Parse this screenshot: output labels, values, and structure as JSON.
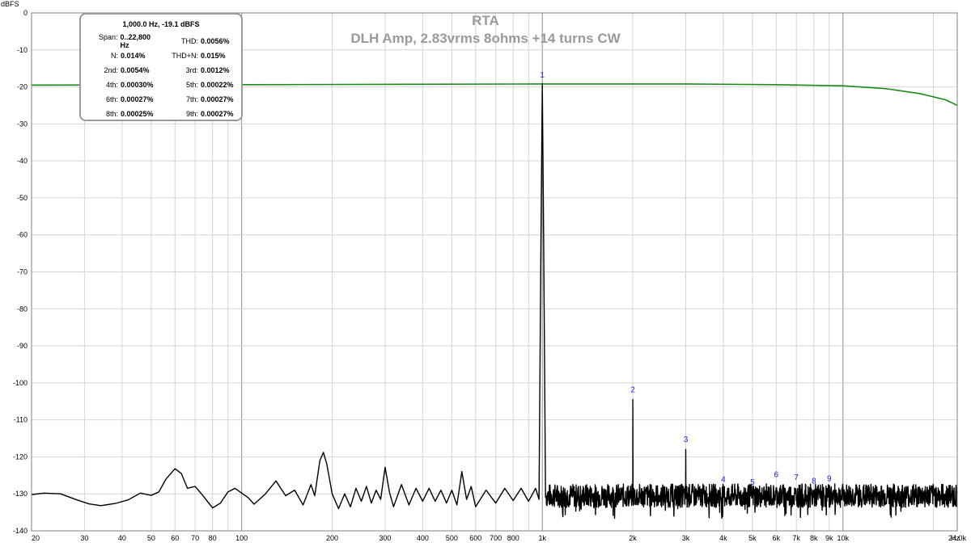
{
  "chart_data": {
    "type": "line",
    "title": "RTA",
    "subtitle": "DLH Amp, 2.83vrms 8ohms +14 turns CW",
    "ylabel": "dBFS",
    "xunit": "Hz",
    "xscale": "log",
    "xlim": [
      20,
      24000
    ],
    "ylim": [
      -140,
      0
    ],
    "grid": true,
    "y_ticks": [
      0,
      -10,
      -20,
      -30,
      -40,
      -50,
      -60,
      -70,
      -80,
      -90,
      -100,
      -110,
      -120,
      -130,
      -140
    ],
    "x_ticks": [
      {
        "v": 20,
        "label": "20"
      },
      {
        "v": 30,
        "label": "30"
      },
      {
        "v": 40,
        "label": "40"
      },
      {
        "v": 50,
        "label": "50"
      },
      {
        "v": 60,
        "label": "60"
      },
      {
        "v": 70,
        "label": "70"
      },
      {
        "v": 80,
        "label": "80"
      },
      {
        "v": 100,
        "label": "100"
      },
      {
        "v": 200,
        "label": "200"
      },
      {
        "v": 300,
        "label": "300"
      },
      {
        "v": 400,
        "label": "400"
      },
      {
        "v": 500,
        "label": "500"
      },
      {
        "v": 600,
        "label": "600"
      },
      {
        "v": 700,
        "label": "700"
      },
      {
        "v": 800,
        "label": "800"
      },
      {
        "v": 1000,
        "label": "1k"
      },
      {
        "v": 2000,
        "label": "2k"
      },
      {
        "v": 3000,
        "label": "3k"
      },
      {
        "v": 4000,
        "label": "4k"
      },
      {
        "v": 5000,
        "label": "5k"
      },
      {
        "v": 6000,
        "label": "6k"
      },
      {
        "v": 7000,
        "label": "7k"
      },
      {
        "v": 8000,
        "label": "8k"
      },
      {
        "v": 9000,
        "label": "9k"
      },
      {
        "v": 10000,
        "label": "10k"
      },
      {
        "v": 24000,
        "label": "24.0k"
      }
    ],
    "series": [
      {
        "color": "#1a8a1a",
        "points": [
          [
            20,
            -19.5
          ],
          [
            100,
            -19.4
          ],
          [
            1000,
            -19.2
          ],
          [
            3000,
            -19.2
          ],
          [
            6000,
            -19.4
          ],
          [
            10000,
            -19.7
          ],
          [
            14000,
            -20.5
          ],
          [
            18000,
            -21.8
          ],
          [
            22000,
            -23.5
          ],
          [
            24000,
            -25
          ]
        ]
      },
      {
        "color": "#000000",
        "points": [
          [
            20,
            -130.2
          ],
          [
            22,
            -129.8
          ],
          [
            25,
            -130.0
          ],
          [
            28,
            -131.5
          ],
          [
            31,
            -132.7
          ],
          [
            34,
            -133.2
          ],
          [
            38,
            -132.6
          ],
          [
            42,
            -131.6
          ],
          [
            46,
            -129.8
          ],
          [
            50,
            -130.4
          ],
          [
            53,
            -129.5
          ],
          [
            56,
            -126.0
          ],
          [
            60,
            -123.2
          ],
          [
            63,
            -124.5
          ],
          [
            66,
            -128.5
          ],
          [
            70,
            -128.0
          ],
          [
            74,
            -130.3
          ],
          [
            80,
            -133.8
          ],
          [
            85,
            -132.5
          ],
          [
            90,
            -129.5
          ],
          [
            95,
            -128.5
          ],
          [
            100,
            -129.8
          ],
          [
            105,
            -131.0
          ],
          [
            110,
            -132.8
          ],
          [
            120,
            -130.0
          ],
          [
            130,
            -126.5
          ],
          [
            140,
            -130.5
          ],
          [
            150,
            -129.0
          ],
          [
            160,
            -133.0
          ],
          [
            170,
            -127.5
          ],
          [
            175,
            -130.5
          ],
          [
            182,
            -121.0
          ],
          [
            187,
            -118.8
          ],
          [
            192,
            -122.0
          ],
          [
            200,
            -130.0
          ],
          [
            210,
            -134.0
          ],
          [
            220,
            -130.0
          ],
          [
            230,
            -133.5
          ],
          [
            240,
            -128.5
          ],
          [
            250,
            -132.0
          ],
          [
            260,
            -128.0
          ],
          [
            270,
            -132.5
          ],
          [
            280,
            -129.0
          ],
          [
            290,
            -131.5
          ],
          [
            300,
            -122.8
          ],
          [
            310,
            -129.5
          ],
          [
            320,
            -133.5
          ],
          [
            340,
            -127.5
          ],
          [
            360,
            -133.0
          ],
          [
            380,
            -128.5
          ],
          [
            400,
            -132.0
          ],
          [
            420,
            -128.5
          ],
          [
            440,
            -132.0
          ],
          [
            460,
            -129.0
          ],
          [
            480,
            -132.5
          ],
          [
            500,
            -129.0
          ],
          [
            520,
            -133.0
          ],
          [
            540,
            -124.0
          ],
          [
            560,
            -131.5
          ],
          [
            580,
            -128.0
          ],
          [
            600,
            -133.5
          ],
          [
            650,
            -129.0
          ],
          [
            700,
            -132.5
          ],
          [
            750,
            -128.5
          ],
          [
            800,
            -131.8
          ],
          [
            850,
            -128.5
          ],
          [
            900,
            -132.0
          ],
          [
            950,
            -128.5
          ],
          [
            975,
            -131.5
          ],
          [
            990,
            -60.0
          ],
          [
            1000,
            -19.1
          ],
          [
            1010,
            -60.0
          ],
          [
            1025,
            -131.0
          ],
          [
            1100,
            -130.5
          ],
          [
            1200,
            -128.5
          ],
          [
            1300,
            -132.5
          ],
          [
            1500,
            -130.0
          ],
          [
            1700,
            -131.5
          ],
          [
            1900,
            -129.5
          ],
          [
            1985,
            -130.5
          ],
          [
            2000,
            -104.5
          ],
          [
            2015,
            -130.5
          ],
          [
            2200,
            -131.0
          ],
          [
            2500,
            -130.5
          ],
          [
            2800,
            -129.5
          ],
          [
            2985,
            -131.0
          ],
          [
            3000,
            -118.0
          ],
          [
            3015,
            -131.0
          ],
          [
            3500,
            -130.5
          ],
          [
            4000,
            -130.0
          ],
          [
            5000,
            -129.8
          ],
          [
            6000,
            -129.5
          ],
          [
            8000,
            -130.2
          ],
          [
            10000,
            -130.5
          ],
          [
            15000,
            -131.0
          ],
          [
            20000,
            -131.5
          ],
          [
            24000,
            -132.0
          ]
        ]
      }
    ],
    "harmonic_labels": [
      {
        "label": "1",
        "x": 1000,
        "y": -17.5
      },
      {
        "label": "2",
        "x": 2000,
        "y": -102.5
      },
      {
        "label": "3",
        "x": 3000,
        "y": -116.0
      },
      {
        "label": "4",
        "x": 4000,
        "y": -126.8
      },
      {
        "label": "5",
        "x": 5000,
        "y": -127.5
      },
      {
        "label": "6",
        "x": 6000,
        "y": -125.5
      },
      {
        "label": "7",
        "x": 7000,
        "y": -126.2
      },
      {
        "label": "8",
        "x": 8000,
        "y": -127.2
      },
      {
        "label": "9",
        "x": 9000,
        "y": -126.6
      }
    ],
    "noise_floor": {
      "from": 1030,
      "to": 24000,
      "center": -130.5,
      "spread": 3.2
    }
  },
  "infobox": {
    "header": "1,000.0 Hz, -19.1 dBFS",
    "rows": [
      {
        "k1": "Span:",
        "v1": "0..22,800 Hz",
        "k2": "THD:",
        "v2": "0.0056%"
      },
      {
        "k1": "N:",
        "v1": "0.014%",
        "k2": "THD+N:",
        "v2": "0.015%"
      },
      {
        "k1": "2nd:",
        "v1": "0.0054%",
        "k2": "3rd:",
        "v2": "0.0012%"
      },
      {
        "k1": "4th:",
        "v1": "0.00030%",
        "k2": "5th:",
        "v2": "0.00022%"
      },
      {
        "k1": "6th:",
        "v1": "0.00027%",
        "k2": "7th:",
        "v2": "0.00027%"
      },
      {
        "k1": "8th:",
        "v1": "0.00025%",
        "k2": "9th:",
        "v2": "0.00027%"
      }
    ]
  }
}
